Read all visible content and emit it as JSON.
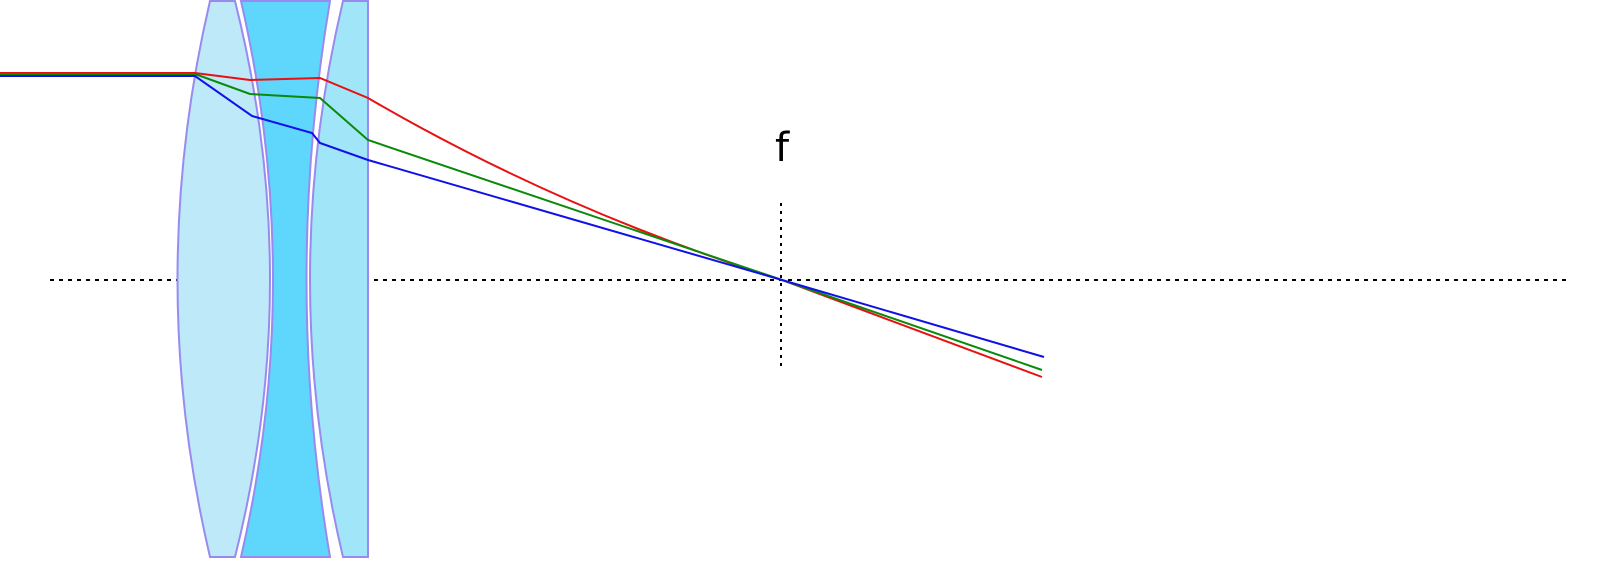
{
  "focal_label": "f"
}
